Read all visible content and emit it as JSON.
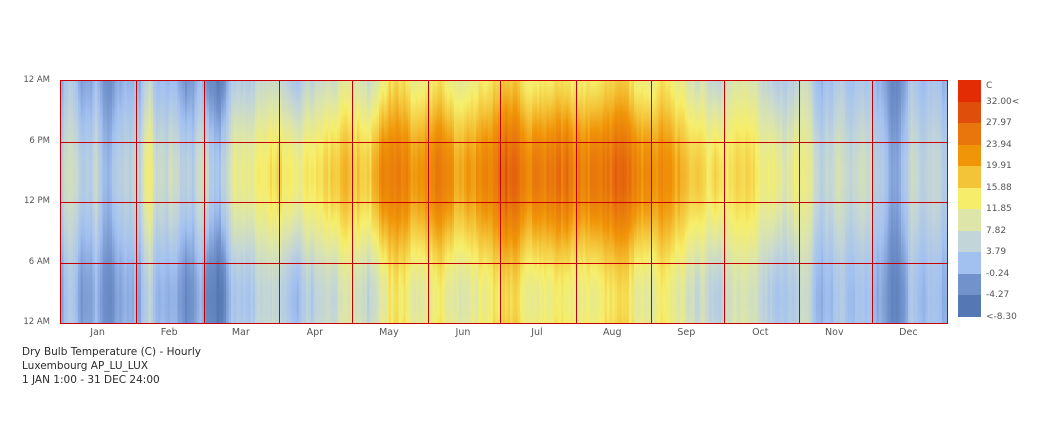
{
  "title_block": {
    "line1": "Dry Bulb Temperature (C) - Hourly",
    "line2": "Luxembourg AP_LU_LUX",
    "line3": "1 JAN 1:00 - 31 DEC 24:00"
  },
  "chart_data": {
    "type": "heatmap",
    "title": "Dry Bulb Temperature (C) - Hourly",
    "location": "Luxembourg AP_LU_LUX",
    "period": "1 JAN 1:00 - 31 DEC 24:00",
    "unit": "C",
    "grid_color": "#c40000",
    "x": {
      "months": [
        "Jan",
        "Feb",
        "Mar",
        "Apr",
        "May",
        "Jun",
        "Jul",
        "Aug",
        "Sep",
        "Oct",
        "Nov",
        "Dec"
      ],
      "days_per_month": [
        31,
        28,
        31,
        30,
        31,
        30,
        31,
        31,
        30,
        31,
        30,
        31
      ],
      "n_days": 365
    },
    "y": {
      "hours_per_day": 24,
      "tick_labels_top_to_bottom": [
        "12 AM",
        "6 PM",
        "12 PM",
        "6 AM",
        "12 AM"
      ]
    },
    "legend": {
      "title": "C",
      "labels_top_to_bottom": [
        "32.00<",
        "27.97",
        "23.94",
        "19.91",
        "15.88",
        "11.85",
        "7.82",
        "3.79",
        "-0.24",
        "-4.27",
        "<-8.30"
      ],
      "thresholds_C": [
        32.0,
        27.97,
        23.94,
        19.91,
        15.88,
        11.85,
        7.82,
        3.79,
        -0.24,
        -4.27,
        -8.3
      ],
      "band_colors_top_to_bottom": [
        "#e42c04",
        "#e04e0c",
        "#e8760c",
        "#f09408",
        "#f4c438",
        "#f6ee6a",
        "#dde6a8",
        "#c2d5d8",
        "#a3c1f0",
        "#7292cc",
        "#5578b4"
      ]
    },
    "color_stops_temp_to_hex": [
      [
        -6.3,
        "#5578b4"
      ],
      [
        -2.3,
        "#7292cc"
      ],
      [
        1.8,
        "#a3c1f0"
      ],
      [
        5.8,
        "#c2d5d8"
      ],
      [
        9.8,
        "#dde6a8"
      ],
      [
        13.9,
        "#f6ee6a"
      ],
      [
        17.9,
        "#f4c438"
      ],
      [
        21.9,
        "#f09408"
      ],
      [
        25.9,
        "#e8760c"
      ],
      [
        30.0,
        "#e04e0c"
      ],
      [
        34.0,
        "#e42c04"
      ]
    ],
    "daily_mean_C_control_points": [
      [
        1,
        3
      ],
      [
        4,
        6.5
      ],
      [
        6,
        5
      ],
      [
        9,
        1.5
      ],
      [
        12,
        0.5
      ],
      [
        15,
        3.5
      ],
      [
        18,
        -1
      ],
      [
        21,
        -1.5
      ],
      [
        24,
        2
      ],
      [
        28,
        3.5
      ],
      [
        31,
        3
      ],
      [
        33,
        2
      ],
      [
        35,
        8
      ],
      [
        37,
        8.5
      ],
      [
        40,
        3
      ],
      [
        44,
        3.5
      ],
      [
        48,
        4
      ],
      [
        52,
        1
      ],
      [
        55,
        0.5
      ],
      [
        58,
        5
      ],
      [
        61,
        2
      ],
      [
        63,
        -0.5
      ],
      [
        66,
        -1
      ],
      [
        68,
        1
      ],
      [
        71,
        7
      ],
      [
        74,
        8.5
      ],
      [
        78,
        7
      ],
      [
        82,
        10
      ],
      [
        86,
        11
      ],
      [
        90,
        10.5
      ],
      [
        93,
        9
      ],
      [
        97,
        6
      ],
      [
        101,
        9.5
      ],
      [
        106,
        10
      ],
      [
        110,
        11
      ],
      [
        114,
        12.5
      ],
      [
        117,
        14.5
      ],
      [
        120,
        13
      ],
      [
        122,
        12
      ],
      [
        125,
        13
      ],
      [
        127,
        11
      ],
      [
        130,
        13.5
      ],
      [
        133,
        17
      ],
      [
        136,
        19
      ],
      [
        139,
        19.5
      ],
      [
        142,
        19
      ],
      [
        145,
        16
      ],
      [
        148,
        15
      ],
      [
        151,
        17
      ],
      [
        153,
        18.5
      ],
      [
        156,
        19
      ],
      [
        159,
        18
      ],
      [
        163,
        15.5
      ],
      [
        167,
        15
      ],
      [
        171,
        16.5
      ],
      [
        175,
        17.5
      ],
      [
        179,
        19.5
      ],
      [
        181,
        20
      ],
      [
        183,
        21.5
      ],
      [
        186,
        22.5
      ],
      [
        189,
        21
      ],
      [
        193,
        17.5
      ],
      [
        197,
        18.5
      ],
      [
        201,
        19
      ],
      [
        205,
        20
      ],
      [
        209,
        19
      ],
      [
        212,
        18.5
      ],
      [
        214,
        17.5
      ],
      [
        218,
        18.5
      ],
      [
        222,
        19
      ],
      [
        226,
        20.5
      ],
      [
        230,
        21.5
      ],
      [
        234,
        21
      ],
      [
        238,
        17.5
      ],
      [
        242,
        16.5
      ],
      [
        245,
        17
      ],
      [
        248,
        18
      ],
      [
        252,
        17
      ],
      [
        256,
        14
      ],
      [
        260,
        13
      ],
      [
        264,
        11.5
      ],
      [
        268,
        10.5
      ],
      [
        272,
        10
      ],
      [
        275,
        11
      ],
      [
        279,
        12.5
      ],
      [
        283,
        13.5
      ],
      [
        287,
        11
      ],
      [
        291,
        8.5
      ],
      [
        295,
        7
      ],
      [
        299,
        6.5
      ],
      [
        303,
        8
      ],
      [
        306,
        9.5
      ],
      [
        308,
        10
      ],
      [
        311,
        4
      ],
      [
        314,
        2.5
      ],
      [
        318,
        4.5
      ],
      [
        322,
        5
      ],
      [
        326,
        3.5
      ],
      [
        330,
        4.5
      ],
      [
        334,
        4
      ],
      [
        336,
        2
      ],
      [
        339,
        1
      ],
      [
        342,
        -2.5
      ],
      [
        345,
        -3
      ],
      [
        348,
        1
      ],
      [
        351,
        5
      ],
      [
        354,
        3.5
      ],
      [
        357,
        2.5
      ],
      [
        360,
        5
      ],
      [
        363,
        3
      ],
      [
        365,
        2
      ]
    ],
    "diurnal_amplitude_C_by_month": [
      2.5,
      3.5,
      4.5,
      5,
      5.5,
      5.5,
      6,
      6,
      5,
      4,
      2.5,
      2
    ],
    "day_jitter_C": 1.4,
    "peak_hour": 15
  }
}
